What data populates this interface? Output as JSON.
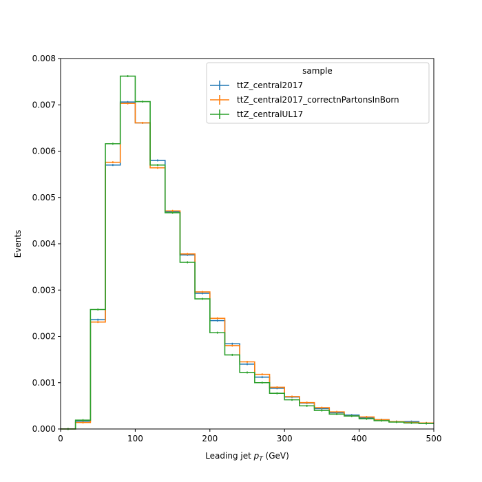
{
  "chart_data": {
    "type": "histogram-step",
    "xlabel_main": "Leading jet  ",
    "xlabel_math": "p",
    "xlabel_sub": "T",
    "xlabel_unit": " (GeV)",
    "ylabel": "Events",
    "xlim": [
      0,
      500
    ],
    "ylim": [
      0,
      0.008
    ],
    "x_ticks": [
      0,
      100,
      200,
      300,
      400,
      500
    ],
    "x_tick_labels": [
      "0",
      "100",
      "200",
      "300",
      "400",
      "500"
    ],
    "y_ticks": [
      0,
      0.001,
      0.002,
      0.003,
      0.004,
      0.005,
      0.006,
      0.007,
      0.008
    ],
    "y_tick_labels": [
      "0.000",
      "0.001",
      "0.002",
      "0.003",
      "0.004",
      "0.005",
      "0.006",
      "0.007",
      "0.008"
    ],
    "grid": false,
    "legend": {
      "title": "sample",
      "placement": "top-right"
    },
    "bin_edges": [
      0,
      20,
      40,
      60,
      80,
      100,
      120,
      140,
      160,
      180,
      200,
      220,
      240,
      260,
      280,
      300,
      320,
      340,
      360,
      380,
      400,
      420,
      440,
      460,
      480,
      500
    ],
    "series": [
      {
        "name": "ttZ_central2017",
        "color": "#1f77b4",
        "values": [
          0.0,
          0.00017,
          0.00236,
          0.0057,
          0.00706,
          0.00661,
          0.0058,
          0.00469,
          0.00376,
          0.00293,
          0.00234,
          0.00184,
          0.0014,
          0.00112,
          0.00088,
          0.00069,
          0.00056,
          0.00044,
          0.00035,
          0.0003,
          0.00024,
          0.0002,
          0.00016,
          0.00016,
          0.00012
        ]
      },
      {
        "name": "ttZ_central2017_correctnPartonsInBorn",
        "color": "#ff7f0e",
        "values": [
          0.0,
          0.00014,
          0.00231,
          0.00576,
          0.00703,
          0.00661,
          0.00564,
          0.00471,
          0.00378,
          0.00296,
          0.00239,
          0.0018,
          0.00145,
          0.00118,
          0.0009,
          0.0007,
          0.00057,
          0.00046,
          0.00037,
          0.00028,
          0.00026,
          0.0002,
          0.00016,
          0.00014,
          0.00013
        ]
      },
      {
        "name": "ttZ_centralUL17",
        "color": "#2ca02c",
        "values": [
          0.0,
          0.00019,
          0.00258,
          0.00616,
          0.00762,
          0.00707,
          0.0057,
          0.00467,
          0.0036,
          0.00281,
          0.00208,
          0.0016,
          0.00122,
          0.001,
          0.00077,
          0.00063,
          0.0005,
          0.0004,
          0.00032,
          0.00028,
          0.00022,
          0.00018,
          0.00015,
          0.00013,
          0.00012
        ]
      }
    ]
  }
}
